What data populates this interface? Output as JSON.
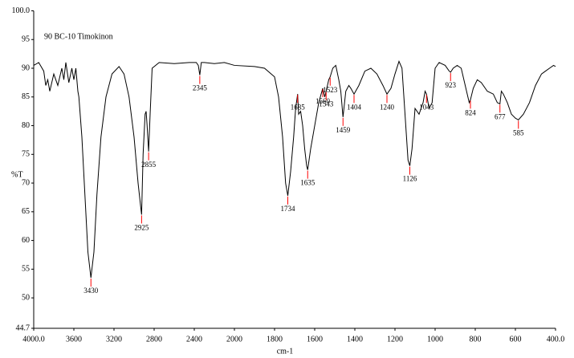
{
  "chart_data": {
    "type": "line",
    "title": "90 BC-10 Timokinon",
    "xlabel": "cm-1",
    "ylabel": "%T",
    "color": "#000000",
    "peak_color": "#ff0000",
    "xlim": [
      4000,
      400
    ],
    "xscale": {
      "break": 2000,
      "factor": 2
    },
    "xticks": [
      {
        "value": 4000,
        "label": "4000.0"
      },
      3600,
      3200,
      2800,
      2400,
      2000,
      1800,
      1600,
      1400,
      1200,
      1000,
      800,
      600,
      {
        "value": 400,
        "label": "400.0"
      }
    ],
    "ylim": [
      44.7,
      100
    ],
    "yticks": [
      44.7,
      50,
      55,
      60,
      65,
      70,
      75,
      80,
      85,
      90,
      95,
      {
        "value": 100,
        "label": "100.0"
      }
    ],
    "x": [
      4000,
      3950,
      3900,
      3880,
      3860,
      3840,
      3800,
      3760,
      3720,
      3700,
      3680,
      3650,
      3620,
      3600,
      3580,
      3560,
      3550,
      3520,
      3490,
      3460,
      3430,
      3400,
      3370,
      3330,
      3280,
      3220,
      3150,
      3100,
      3050,
      3000,
      2960,
      2935,
      2925,
      2910,
      2890,
      2880,
      2870,
      2855,
      2840,
      2820,
      2750,
      2600,
      2450,
      2380,
      2360,
      2345,
      2330,
      2300,
      2200,
      2100,
      2000,
      1900,
      1850,
      1800,
      1780,
      1760,
      1745,
      1734,
      1720,
      1705,
      1695,
      1685,
      1680,
      1670,
      1660,
      1650,
      1640,
      1635,
      1620,
      1600,
      1580,
      1560,
      1550,
      1543,
      1530,
      1523,
      1510,
      1495,
      1480,
      1470,
      1459,
      1445,
      1430,
      1420,
      1404,
      1380,
      1350,
      1320,
      1290,
      1260,
      1240,
      1220,
      1200,
      1180,
      1165,
      1150,
      1135,
      1126,
      1115,
      1100,
      1080,
      1060,
      1050,
      1043,
      1030,
      1015,
      1000,
      980,
      950,
      930,
      923,
      910,
      890,
      870,
      850,
      830,
      824,
      810,
      790,
      770,
      740,
      710,
      690,
      677,
      670,
      660,
      640,
      620,
      600,
      585,
      560,
      530,
      500,
      470,
      450,
      430,
      410,
      400
    ],
    "values": [
      90.5,
      91,
      89.5,
      87,
      88,
      86,
      89,
      87,
      90,
      88,
      91,
      87.5,
      90,
      88,
      90,
      86,
      85,
      78,
      68,
      58,
      53.5,
      58,
      68,
      78,
      85,
      89,
      90.3,
      89,
      85,
      78,
      70,
      66,
      64.5,
      75,
      82,
      82.5,
      80,
      75.5,
      82,
      90,
      91,
      90.8,
      91,
      91,
      90.5,
      88.8,
      91,
      91,
      90.8,
      91,
      90.5,
      90.3,
      90,
      88.5,
      85,
      78,
      70,
      67.8,
      72,
      78,
      83,
      85.5,
      82,
      82.5,
      80,
      76,
      73,
      72.3,
      76,
      80,
      84,
      86.5,
      85,
      86,
      88,
      88.5,
      90,
      90.5,
      88,
      86,
      81.5,
      86,
      87,
      86.5,
      85.5,
      87,
      89.5,
      90,
      89,
      87,
      85.5,
      86.5,
      89,
      91.2,
      90,
      82,
      74,
      73,
      76,
      83,
      82,
      84,
      86,
      85.5,
      83,
      84,
      90,
      91,
      90.5,
      89.5,
      89.3,
      90,
      90.5,
      90,
      87,
      84,
      84.5,
      86.5,
      88,
      87.5,
      86,
      85.5,
      84,
      83.8,
      86,
      85.5,
      84,
      82,
      81.3,
      81,
      82,
      84,
      87,
      89,
      89.5,
      90,
      90.5,
      90.3
    ],
    "peaks": [
      3430,
      2925,
      2855,
      2345,
      1734,
      1685,
      1635,
      1560,
      1543,
      1523,
      1459,
      1404,
      1240,
      1126,
      1043,
      923,
      824,
      677,
      585
    ]
  }
}
